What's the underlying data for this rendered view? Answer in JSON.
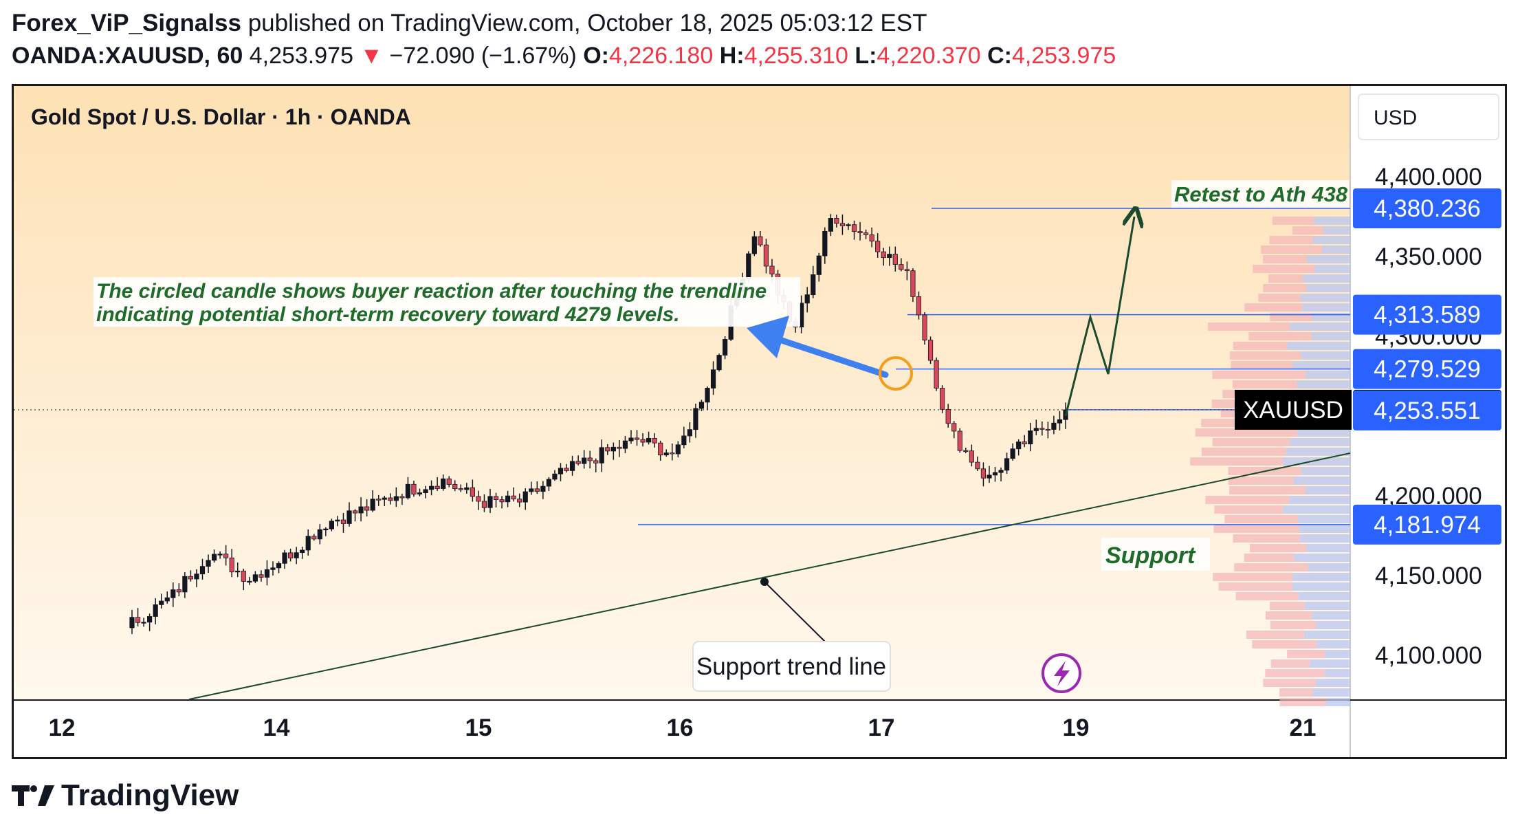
{
  "header": {
    "author": "Forex_ViP_Signalss",
    "published_text": "published on TradingView.com, October 18, 2025 05:03:12 EST",
    "symbol": "OANDA:XAUUSD, 60",
    "last": "4,253.975",
    "change": "−72.090 (−1.67%)",
    "o_label": "O:",
    "o_value": "4,226.180",
    "h_label": "H:",
    "h_value": "4,255.310",
    "l_label": "L:",
    "l_value": "4,220.370",
    "c_label": "C:",
    "c_value": "4,253.975"
  },
  "chart_data": {
    "type": "candlestick",
    "title": "Gold Spot / U.S. Dollar · 1h · OANDA",
    "currency": "USD",
    "x_ticks": [
      "12",
      "14",
      "15",
      "16",
      "17",
      "19",
      "21"
    ],
    "y_ticks": [
      "4,400.000",
      "4,350.000",
      "4,300.000",
      "4,200.000",
      "4,150.000",
      "4,100.000"
    ],
    "ylim": [
      4072,
      4457
    ],
    "anchors": [
      4120.3,
      4136.2,
      4165.0,
      4148.2,
      4162.8,
      4183.2,
      4192.0,
      4203.2,
      4209.8,
      4196.0,
      4196.5,
      4213.4,
      4225.3,
      4235.5,
      4225.5,
      4282.0,
      4365.4,
      4302.6,
      4376.2,
      4361.7,
      4335.6,
      4241.6,
      4210.0,
      4235.0,
      4253.975
    ],
    "price_labels": [
      {
        "text": "4,380.236",
        "value": 4380.236,
        "color": "#2962ff"
      },
      {
        "text": "4,313.589",
        "value": 4313.589,
        "color": "#2962ff"
      },
      {
        "text": "4,279.529",
        "value": 4279.529,
        "color": "#2962ff"
      },
      {
        "text": "4,253.975",
        "value": 4253.975,
        "color": "#000000"
      },
      {
        "text": "4,253.551",
        "value": 4253.551,
        "color": "#2962ff"
      },
      {
        "text": "4,181.974",
        "value": 4181.974,
        "color": "#2962ff"
      }
    ],
    "symbol_tag": "XAUUSD",
    "annotations": {
      "note_line1": "The circled candle shows buyer reaction after touching the trendline",
      "note_line2": "indicating potential short-term recovery toward 4279 levels.",
      "retest": "Retest to Ath 438",
      "support": "Support",
      "trend_line": "Support trend line"
    },
    "colors": {
      "up": "#131722",
      "down": "#d9485a",
      "level": "#2962ff",
      "trend": "#1b4a2e",
      "annotation_text": "#1e6b2a"
    }
  },
  "footer": {
    "logo_text": "TradingView"
  }
}
